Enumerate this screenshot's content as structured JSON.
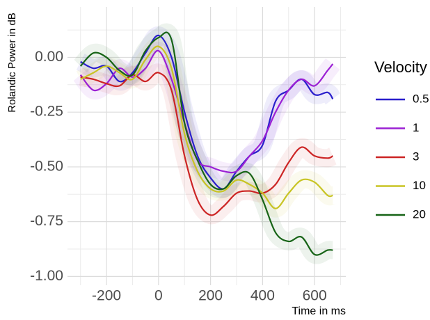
{
  "chart_data": {
    "type": "line",
    "y_label": "Rolandic Power in dB",
    "x_label": "Time in ms",
    "legend_title": "Velocity",
    "x": [
      -300,
      -250,
      -200,
      -150,
      -100,
      -50,
      0,
      50,
      100,
      150,
      200,
      250,
      300,
      350,
      400,
      450,
      500,
      550,
      600,
      650,
      670
    ],
    "series": [
      {
        "name": "0.5",
        "color": "#2a1fcc",
        "values": [
          -0.02,
          -0.05,
          -0.04,
          -0.11,
          -0.07,
          0.02,
          0.1,
          0.0,
          -0.25,
          -0.45,
          -0.55,
          -0.6,
          -0.52,
          -0.45,
          -0.4,
          -0.2,
          -0.15,
          -0.1,
          -0.17,
          -0.16,
          -0.19
        ]
      },
      {
        "name": "1",
        "color": "#9b20d4",
        "values": [
          -0.08,
          -0.15,
          -0.12,
          -0.05,
          -0.09,
          -0.05,
          0.03,
          -0.1,
          -0.3,
          -0.47,
          -0.5,
          -0.52,
          -0.52,
          -0.45,
          -0.38,
          -0.25,
          -0.15,
          -0.1,
          -0.13,
          -0.06,
          -0.03
        ]
      },
      {
        "name": "3",
        "color": "#cc2424",
        "values": [
          -0.09,
          -0.1,
          -0.12,
          -0.13,
          -0.08,
          -0.11,
          -0.07,
          -0.15,
          -0.45,
          -0.65,
          -0.72,
          -0.68,
          -0.62,
          -0.61,
          -0.62,
          -0.58,
          -0.48,
          -0.41,
          -0.45,
          -0.46,
          -0.45
        ]
      },
      {
        "name": "10",
        "color": "#c8c424",
        "values": [
          -0.1,
          -0.07,
          -0.04,
          -0.07,
          -0.1,
          -0.01,
          0.05,
          -0.05,
          -0.35,
          -0.52,
          -0.6,
          -0.61,
          -0.56,
          -0.58,
          -0.62,
          -0.69,
          -0.62,
          -0.56,
          -0.57,
          -0.63,
          -0.63
        ]
      },
      {
        "name": "20",
        "color": "#176417",
        "values": [
          -0.04,
          0.02,
          0.0,
          -0.06,
          -0.08,
          0.03,
          0.09,
          0.08,
          -0.3,
          -0.47,
          -0.58,
          -0.6,
          -0.54,
          -0.53,
          -0.65,
          -0.8,
          -0.84,
          -0.82,
          -0.9,
          -0.88,
          -0.88
        ]
      }
    ],
    "xlim": [
      -350,
      720
    ],
    "ylim": [
      -1.04,
      0.23
    ],
    "xticks": [
      -200,
      0,
      200,
      400,
      600
    ],
    "yticks": [
      {
        "value": 0,
        "label": "0.00"
      },
      {
        "value": -0.25,
        "label": "-0.25"
      },
      {
        "value": -0.5,
        "label": "-0.50"
      },
      {
        "value": -0.75,
        "label": "-0.75"
      },
      {
        "value": -1,
        "label": "-1.00"
      }
    ],
    "grid": true
  }
}
